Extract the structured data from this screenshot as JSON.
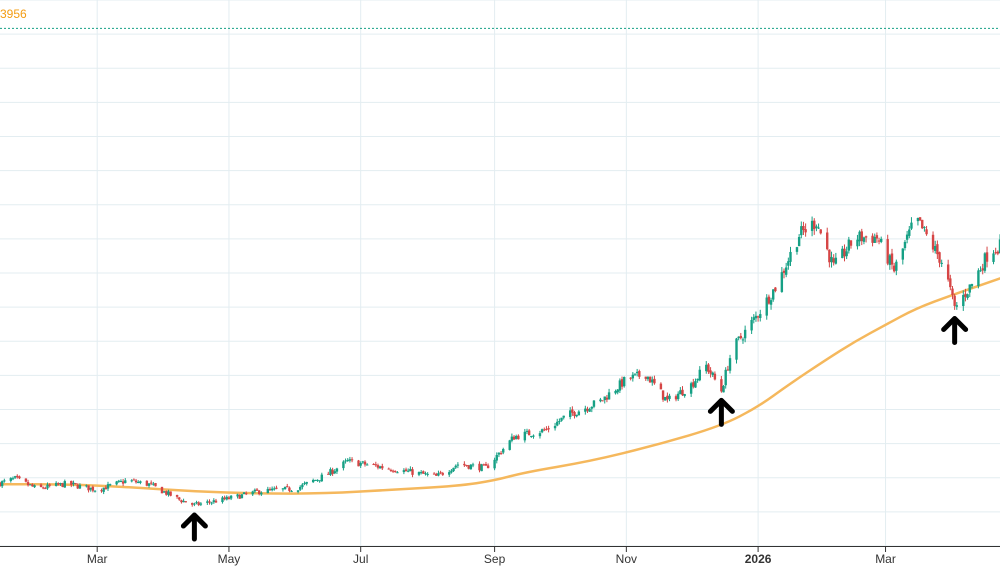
{
  "chart_data": {
    "type": "candlestick",
    "overlay_label": "3956",
    "x_range": [
      "2025-01-15",
      "2026-04-23"
    ],
    "x_ticks": [
      {
        "date": "2025-03-01",
        "label": "Mar",
        "bold": false
      },
      {
        "date": "2025-05-01",
        "label": "May",
        "bold": false
      },
      {
        "date": "2025-07-01",
        "label": "Jul",
        "bold": false
      },
      {
        "date": "2025-09-01",
        "label": "Sep",
        "bold": false
      },
      {
        "date": "2025-11-01",
        "label": "Nov",
        "bold": false
      },
      {
        "date": "2026-01-01",
        "label": "2026",
        "bold": true
      },
      {
        "date": "2026-03-01",
        "label": "Mar",
        "bold": false
      }
    ],
    "y_range": [
      0,
      100
    ],
    "grid": true,
    "reference_line": {
      "value": 94.8,
      "style": "dotted",
      "color": "#16a085"
    },
    "candle_colors": {
      "up": "#16a085",
      "down": "#d64545"
    },
    "moving_average": {
      "color": "#f5b85d",
      "points": [
        [
          "2025-01-15",
          11.3
        ],
        [
          "2025-02-15",
          11.3
        ],
        [
          "2025-03-15",
          10.8
        ],
        [
          "2025-04-15",
          10.0
        ],
        [
          "2025-05-15",
          9.6
        ],
        [
          "2025-06-15",
          9.6
        ],
        [
          "2025-07-15",
          10.3
        ],
        [
          "2025-08-15",
          11.0
        ],
        [
          "2025-09-01",
          12.0
        ],
        [
          "2025-09-15",
          13.5
        ],
        [
          "2025-10-15",
          15.5
        ],
        [
          "2025-11-15",
          18.5
        ],
        [
          "2025-12-15",
          22.0
        ],
        [
          "2026-01-01",
          25.5
        ],
        [
          "2026-01-15",
          29.5
        ],
        [
          "2026-02-01",
          34.0
        ],
        [
          "2026-02-15",
          37.5
        ],
        [
          "2026-03-01",
          40.5
        ],
        [
          "2026-03-15",
          43.5
        ],
        [
          "2026-04-01",
          46.0
        ],
        [
          "2026-04-23",
          49.0
        ]
      ]
    },
    "ohlc_anchors": [
      [
        "2025-01-15",
        11.5
      ],
      [
        "2025-01-22",
        12.3
      ],
      [
        "2025-02-01",
        10.5
      ],
      [
        "2025-02-15",
        11.4
      ],
      [
        "2025-03-01",
        10.3
      ],
      [
        "2025-03-15",
        12.0
      ],
      [
        "2025-03-25",
        11.3
      ],
      [
        "2025-04-08",
        8.5
      ],
      [
        "2025-04-15",
        7.5
      ],
      [
        "2025-05-01",
        8.7
      ],
      [
        "2025-05-15",
        10.0
      ],
      [
        "2025-06-01",
        10.5
      ],
      [
        "2025-06-15",
        13.0
      ],
      [
        "2025-06-25",
        15.5
      ],
      [
        "2025-07-10",
        14.5
      ],
      [
        "2025-07-25",
        13.5
      ],
      [
        "2025-08-05",
        12.7
      ],
      [
        "2025-08-15",
        15.0
      ],
      [
        "2025-08-28",
        14.3
      ],
      [
        "2025-09-10",
        20.0
      ],
      [
        "2025-09-25",
        21.3
      ],
      [
        "2025-10-05",
        24.0
      ],
      [
        "2025-10-20",
        26.5
      ],
      [
        "2025-11-01",
        30.5
      ],
      [
        "2025-11-10",
        31.5
      ],
      [
        "2025-11-20",
        26.5
      ],
      [
        "2025-12-01",
        29.5
      ],
      [
        "2025-12-08",
        33.0
      ],
      [
        "2025-12-15",
        28.5
      ],
      [
        "2025-12-20",
        36.0
      ],
      [
        "2026-01-01",
        42.5
      ],
      [
        "2026-01-10",
        48.0
      ],
      [
        "2026-01-20",
        57.0
      ],
      [
        "2026-01-28",
        59.5
      ],
      [
        "2026-02-05",
        51.0
      ],
      [
        "2026-02-15",
        56.5
      ],
      [
        "2026-02-25",
        56.5
      ],
      [
        "2026-03-05",
        50.5
      ],
      [
        "2026-03-15",
        60.0
      ],
      [
        "2026-03-28",
        51.5
      ],
      [
        "2026-04-02",
        43.5
      ],
      [
        "2026-04-10",
        48.0
      ],
      [
        "2026-04-18",
        54.0
      ],
      [
        "2026-04-23",
        55.0
      ]
    ],
    "markers": [
      {
        "date": "2025-04-15",
        "value": 7.5,
        "shape": "up-arrow"
      },
      {
        "date": "2025-12-15",
        "value": 28.5,
        "shape": "up-arrow"
      },
      {
        "date": "2026-04-02",
        "value": 43.5,
        "shape": "up-arrow"
      }
    ]
  }
}
